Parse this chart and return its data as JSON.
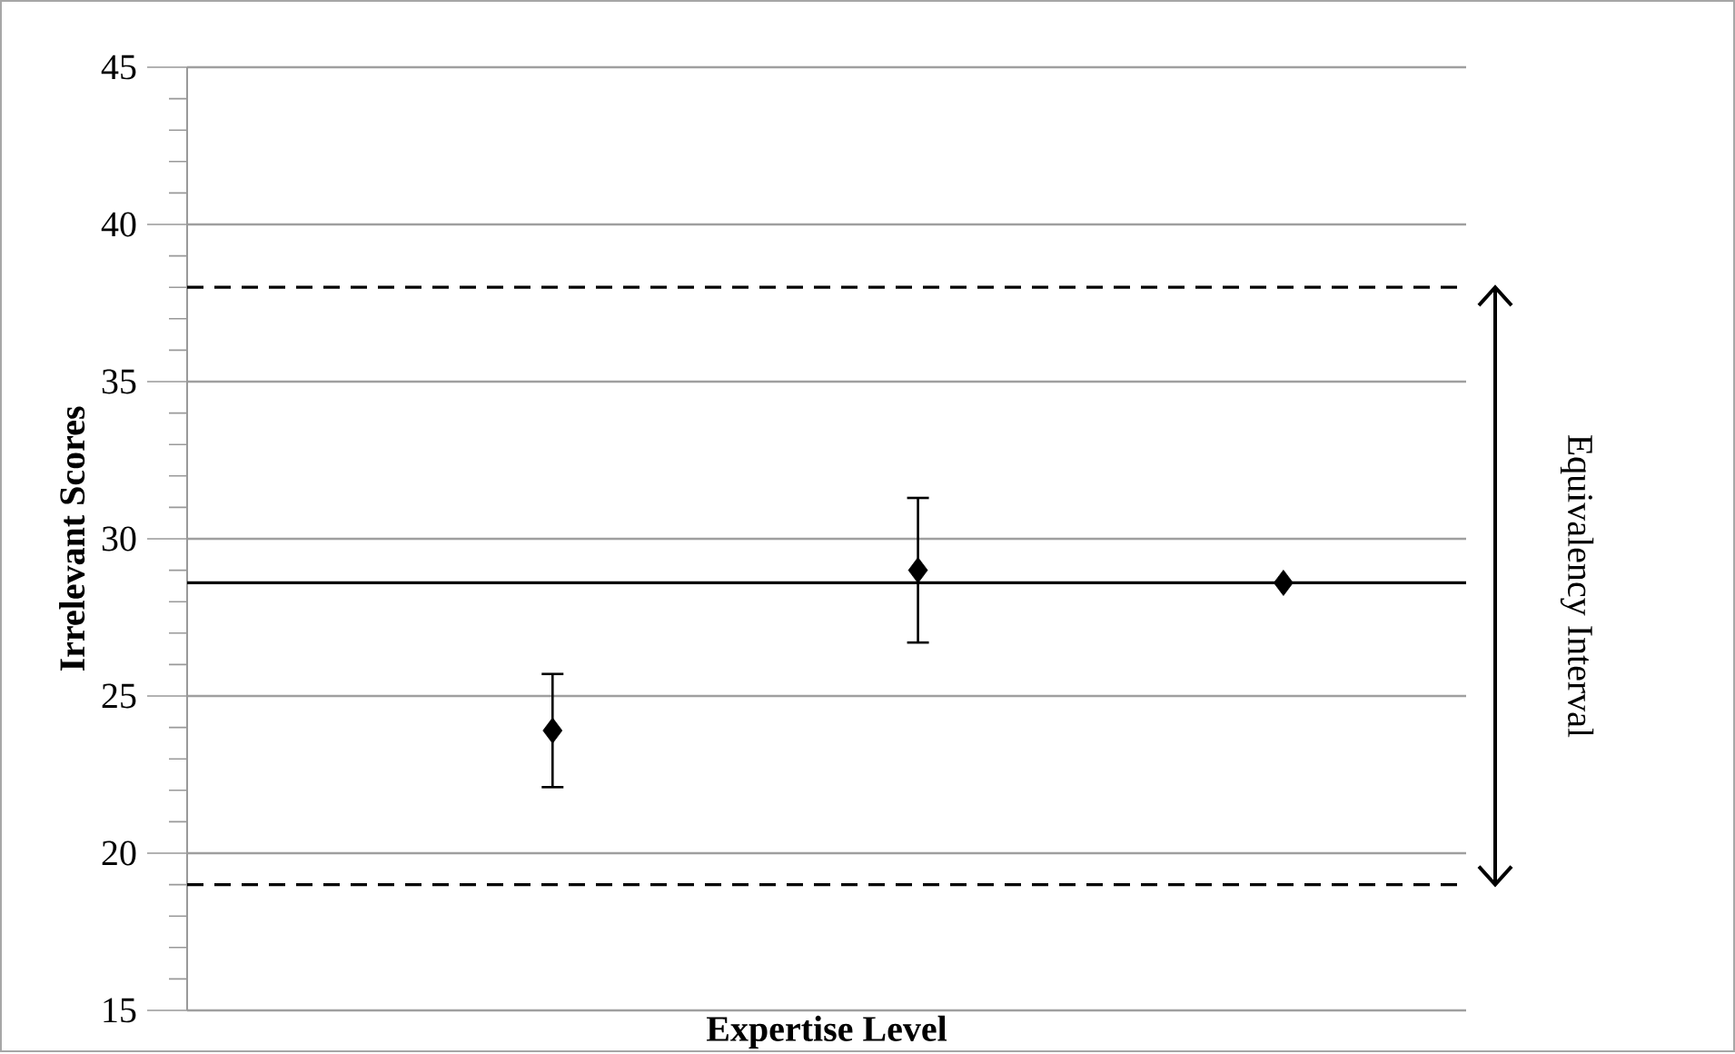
{
  "chart_data": {
    "type": "scatter",
    "xlabel": "Expertise Level",
    "ylabel": "Irrelevant Scores",
    "categories": [
      null,
      null,
      null
    ],
    "values": [
      23.9,
      29.0,
      28.6
    ],
    "errors": [
      [
        22.1,
        25.7
      ],
      [
        26.7,
        31.3
      ],
      null
    ],
    "color": "#000000",
    "marker": "diamond",
    "ylim": [
      15,
      45
    ],
    "yticks": [
      15,
      20,
      25,
      30,
      35,
      40,
      45
    ],
    "grid": "y",
    "ref_lines": [
      {
        "axis": "y",
        "value": 28.6,
        "color": "#000000",
        "line_style": "solid"
      },
      {
        "axis": "y",
        "value": 38,
        "color": "#000000",
        "line_style": "dashed"
      },
      {
        "axis": "y",
        "value": 19,
        "color": "#000000",
        "line_style": "dashed"
      }
    ],
    "annotations": [
      "Equivalency Interval"
    ]
  }
}
